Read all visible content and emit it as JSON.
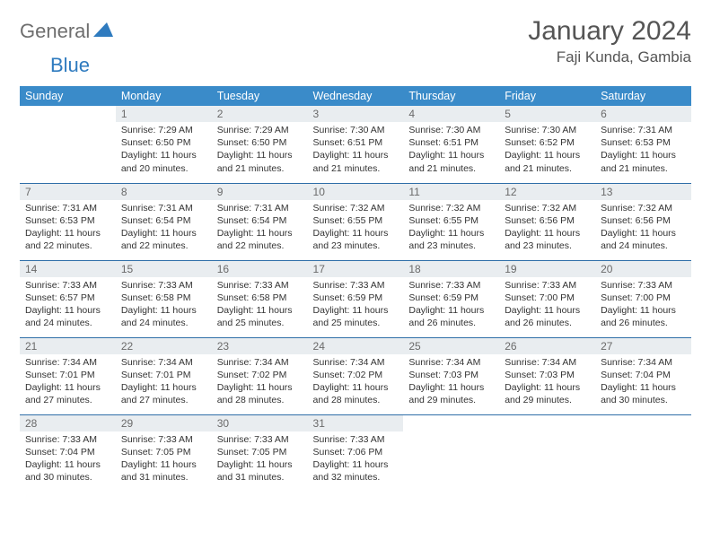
{
  "brand": {
    "word1": "General",
    "word2": "Blue"
  },
  "title": "January 2024",
  "location": "Faji Kunda, Gambia",
  "colors": {
    "header_bg": "#3a8bc9",
    "header_text": "#ffffff",
    "daynum_bg": "#e9edf0",
    "row_border": "#2f6ea8",
    "body_text": "#333333",
    "title_text": "#555555",
    "logo_gray": "#6e6e6e",
    "logo_blue": "#2f7bbf"
  },
  "weekdays": [
    "Sunday",
    "Monday",
    "Tuesday",
    "Wednesday",
    "Thursday",
    "Friday",
    "Saturday"
  ],
  "grid": [
    [
      {
        "n": "",
        "sr": "",
        "ss": "",
        "dl": ""
      },
      {
        "n": "1",
        "sr": "7:29 AM",
        "ss": "6:50 PM",
        "dl": "11 hours and 20 minutes."
      },
      {
        "n": "2",
        "sr": "7:29 AM",
        "ss": "6:50 PM",
        "dl": "11 hours and 21 minutes."
      },
      {
        "n": "3",
        "sr": "7:30 AM",
        "ss": "6:51 PM",
        "dl": "11 hours and 21 minutes."
      },
      {
        "n": "4",
        "sr": "7:30 AM",
        "ss": "6:51 PM",
        "dl": "11 hours and 21 minutes."
      },
      {
        "n": "5",
        "sr": "7:30 AM",
        "ss": "6:52 PM",
        "dl": "11 hours and 21 minutes."
      },
      {
        "n": "6",
        "sr": "7:31 AM",
        "ss": "6:53 PM",
        "dl": "11 hours and 21 minutes."
      }
    ],
    [
      {
        "n": "7",
        "sr": "7:31 AM",
        "ss": "6:53 PM",
        "dl": "11 hours and 22 minutes."
      },
      {
        "n": "8",
        "sr": "7:31 AM",
        "ss": "6:54 PM",
        "dl": "11 hours and 22 minutes."
      },
      {
        "n": "9",
        "sr": "7:31 AM",
        "ss": "6:54 PM",
        "dl": "11 hours and 22 minutes."
      },
      {
        "n": "10",
        "sr": "7:32 AM",
        "ss": "6:55 PM",
        "dl": "11 hours and 23 minutes."
      },
      {
        "n": "11",
        "sr": "7:32 AM",
        "ss": "6:55 PM",
        "dl": "11 hours and 23 minutes."
      },
      {
        "n": "12",
        "sr": "7:32 AM",
        "ss": "6:56 PM",
        "dl": "11 hours and 23 minutes."
      },
      {
        "n": "13",
        "sr": "7:32 AM",
        "ss": "6:56 PM",
        "dl": "11 hours and 24 minutes."
      }
    ],
    [
      {
        "n": "14",
        "sr": "7:33 AM",
        "ss": "6:57 PM",
        "dl": "11 hours and 24 minutes."
      },
      {
        "n": "15",
        "sr": "7:33 AM",
        "ss": "6:58 PM",
        "dl": "11 hours and 24 minutes."
      },
      {
        "n": "16",
        "sr": "7:33 AM",
        "ss": "6:58 PM",
        "dl": "11 hours and 25 minutes."
      },
      {
        "n": "17",
        "sr": "7:33 AM",
        "ss": "6:59 PM",
        "dl": "11 hours and 25 minutes."
      },
      {
        "n": "18",
        "sr": "7:33 AM",
        "ss": "6:59 PM",
        "dl": "11 hours and 26 minutes."
      },
      {
        "n": "19",
        "sr": "7:33 AM",
        "ss": "7:00 PM",
        "dl": "11 hours and 26 minutes."
      },
      {
        "n": "20",
        "sr": "7:33 AM",
        "ss": "7:00 PM",
        "dl": "11 hours and 26 minutes."
      }
    ],
    [
      {
        "n": "21",
        "sr": "7:34 AM",
        "ss": "7:01 PM",
        "dl": "11 hours and 27 minutes."
      },
      {
        "n": "22",
        "sr": "7:34 AM",
        "ss": "7:01 PM",
        "dl": "11 hours and 27 minutes."
      },
      {
        "n": "23",
        "sr": "7:34 AM",
        "ss": "7:02 PM",
        "dl": "11 hours and 28 minutes."
      },
      {
        "n": "24",
        "sr": "7:34 AM",
        "ss": "7:02 PM",
        "dl": "11 hours and 28 minutes."
      },
      {
        "n": "25",
        "sr": "7:34 AM",
        "ss": "7:03 PM",
        "dl": "11 hours and 29 minutes."
      },
      {
        "n": "26",
        "sr": "7:34 AM",
        "ss": "7:03 PM",
        "dl": "11 hours and 29 minutes."
      },
      {
        "n": "27",
        "sr": "7:34 AM",
        "ss": "7:04 PM",
        "dl": "11 hours and 30 minutes."
      }
    ],
    [
      {
        "n": "28",
        "sr": "7:33 AM",
        "ss": "7:04 PM",
        "dl": "11 hours and 30 minutes."
      },
      {
        "n": "29",
        "sr": "7:33 AM",
        "ss": "7:05 PM",
        "dl": "11 hours and 31 minutes."
      },
      {
        "n": "30",
        "sr": "7:33 AM",
        "ss": "7:05 PM",
        "dl": "11 hours and 31 minutes."
      },
      {
        "n": "31",
        "sr": "7:33 AM",
        "ss": "7:06 PM",
        "dl": "11 hours and 32 minutes."
      },
      {
        "n": "",
        "sr": "",
        "ss": "",
        "dl": ""
      },
      {
        "n": "",
        "sr": "",
        "ss": "",
        "dl": ""
      },
      {
        "n": "",
        "sr": "",
        "ss": "",
        "dl": ""
      }
    ]
  ],
  "labels": {
    "sunrise": "Sunrise:",
    "sunset": "Sunset:",
    "daylight": "Daylight:"
  }
}
